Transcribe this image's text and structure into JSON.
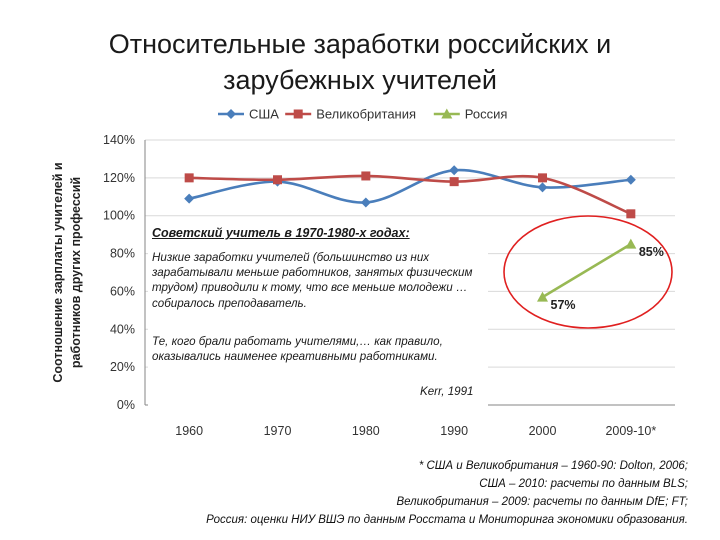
{
  "title_line1": "Относительные заработки российских и",
  "title_line2": "зарубежных учителей",
  "chart_data": {
    "type": "line",
    "categories": [
      "1960",
      "1970",
      "1980",
      "1990",
      "2000",
      "2009-10*"
    ],
    "ylabel_line1": "Соотношение зарплаты учителей и",
    "ylabel_line2": "работников других профессий",
    "ylim": [
      0,
      140
    ],
    "yticks": [
      "0%",
      "20%",
      "40%",
      "60%",
      "80%",
      "100%",
      "120%",
      "140%"
    ],
    "grid": true,
    "legend_position": "top",
    "series": [
      {
        "name": "США",
        "color": "#4a7ebb",
        "marker": "diamond",
        "values": [
          109,
          118,
          107,
          124,
          115,
          119
        ]
      },
      {
        "name": "Великобритания",
        "color": "#be4b48",
        "marker": "square",
        "values": [
          120,
          119,
          121,
          118,
          120,
          101
        ]
      },
      {
        "name": "Россия",
        "color": "#98b954",
        "marker": "triangle",
        "values": [
          null,
          null,
          null,
          null,
          57,
          85
        ]
      }
    ],
    "data_labels": [
      {
        "series": "Россия",
        "category": "2000",
        "text": "57%"
      },
      {
        "series": "Россия",
        "category": "2009-10*",
        "text": "85%"
      }
    ]
  },
  "annotation": {
    "heading": "Советский учитель в 1970-1980-х годах:",
    "para1": "Низкие заработки учителей (большинство из них зарабатывали меньше работников, занятых физическим трудом) приводили к тому, что все меньше молодежи … собиралось преподаватель.",
    "para2": "Те, кого брали работать учителями,… как правило, оказывались наименее креативными работниками.",
    "source": "Kerr, 1991"
  },
  "footnote": [
    "* США и Великобритания – 1960-90: Dolton, 2006;",
    "США – 2010: расчеты по данным BLS;",
    "Великобритания – 2009: расчеты по данным DfE; FT;",
    "Россия: оценки НИУ ВШЭ по данным Росстата и Мониторинга экономики образования."
  ],
  "colors": {
    "grid": "#d9d9d9",
    "axis": "#868686",
    "highlight_ellipse": "#e02020"
  }
}
